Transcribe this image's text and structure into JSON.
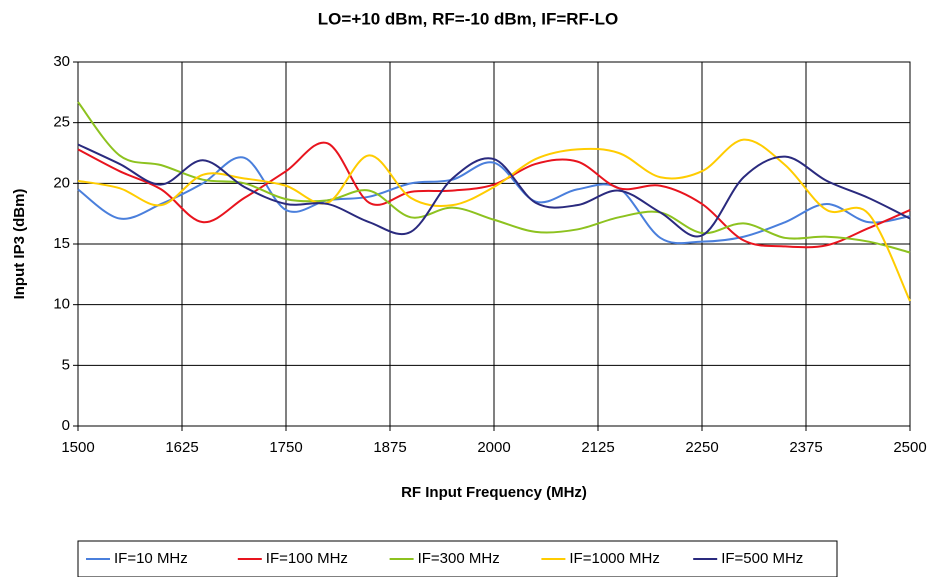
{
  "chart_data": {
    "type": "line",
    "title": "LO=+10 dBm, RF=-10 dBm, IF=RF-LO",
    "x_label": "RF Input Frequency (MHz)",
    "y_label": "Input IP3 (dBm)",
    "x": [
      1500,
      1550,
      1600,
      1650,
      1700,
      1750,
      1800,
      1850,
      1900,
      1950,
      2000,
      2050,
      2100,
      2150,
      2200,
      2250,
      2300,
      2350,
      2400,
      2450,
      2500
    ],
    "series": [
      {
        "name": "IF=10 MHz",
        "color": "#4a7fdc",
        "values": [
          19.5,
          17.1,
          18.3,
          20.0,
          22.1,
          17.8,
          18.6,
          18.9,
          20.0,
          20.3,
          21.7,
          18.5,
          19.5,
          19.6,
          15.5,
          15.2,
          15.6,
          16.8,
          18.3,
          16.8,
          17.3
        ]
      },
      {
        "name": "IF=100 MHz",
        "color": "#e8141e",
        "values": [
          22.8,
          21.0,
          19.5,
          16.8,
          18.8,
          21.0,
          23.3,
          18.4,
          19.3,
          19.4,
          19.9,
          21.6,
          21.8,
          19.6,
          19.8,
          18.3,
          15.3,
          14.8,
          14.9,
          16.3,
          17.8
        ]
      },
      {
        "name": "IF=300 MHz",
        "color": "#8dc21f",
        "values": [
          26.7,
          22.3,
          21.5,
          20.3,
          20.0,
          18.7,
          18.6,
          19.4,
          17.2,
          18.0,
          17.0,
          16.0,
          16.2,
          17.2,
          17.6,
          15.9,
          16.7,
          15.5,
          15.6,
          15.2,
          14.3
        ]
      },
      {
        "name": "IF=1000 MHz",
        "color": "#ffcc00",
        "values": [
          20.2,
          19.6,
          18.2,
          20.7,
          20.4,
          19.8,
          18.4,
          22.3,
          18.8,
          18.2,
          19.7,
          22.0,
          22.8,
          22.5,
          20.5,
          21.0,
          23.6,
          21.5,
          17.8,
          17.5,
          10.3
        ]
      },
      {
        "name": "IF=500 MHz",
        "color": "#2a2a7e",
        "values": [
          23.2,
          21.6,
          19.9,
          21.9,
          19.7,
          18.3,
          18.3,
          16.8,
          16.0,
          20.4,
          22.0,
          18.4,
          18.2,
          19.4,
          17.6,
          15.7,
          20.5,
          22.2,
          20.2,
          18.8,
          17.1
        ]
      }
    ],
    "xlim": [
      1500,
      2500
    ],
    "xticks": [
      1500,
      1625,
      1750,
      1875,
      2000,
      2125,
      2250,
      2375,
      2500
    ],
    "ylim": [
      0,
      30
    ],
    "yticks": [
      0,
      5,
      10,
      15,
      20,
      25,
      30
    ],
    "grid": true,
    "legend": "bottom"
  }
}
